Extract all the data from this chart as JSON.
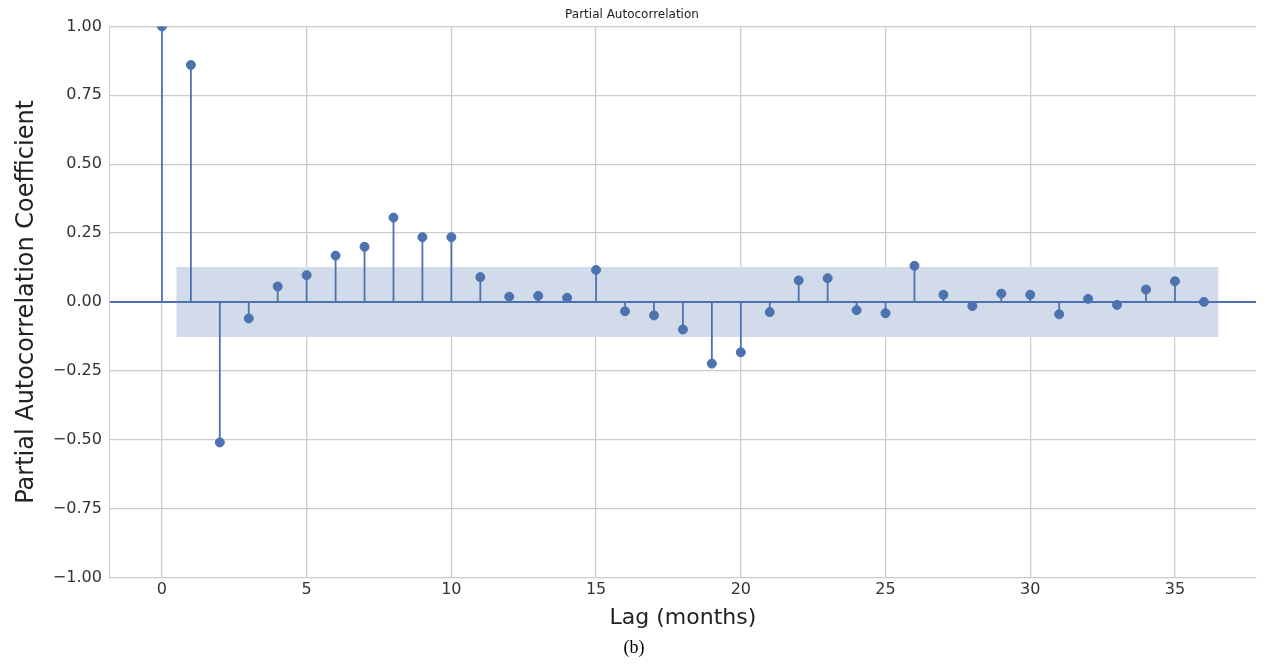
{
  "chart_data": {
    "type": "lollipop",
    "title": "Partial Autocorrelation",
    "xlabel": "Lag (months)",
    "ylabel": "Partial Autocorrelation Coefficient",
    "x": [
      0,
      1,
      2,
      3,
      4,
      5,
      6,
      7,
      8,
      9,
      10,
      11,
      12,
      13,
      14,
      15,
      16,
      17,
      18,
      19,
      20,
      21,
      22,
      23,
      24,
      25,
      26,
      27,
      28,
      29,
      30,
      31,
      32,
      33,
      34,
      35,
      36
    ],
    "series": [
      {
        "color": "#4c72b0",
        "values": [
          1.0,
          0.86,
          -0.51,
          -0.06,
          0.056,
          0.097,
          0.168,
          0.2,
          0.306,
          0.235,
          0.235,
          0.09,
          0.019,
          0.022,
          0.015,
          0.116,
          -0.034,
          -0.049,
          -0.1,
          -0.224,
          -0.183,
          -0.037,
          0.078,
          0.086,
          -0.03,
          -0.041,
          0.131,
          0.026,
          -0.015,
          0.03,
          0.026,
          -0.045,
          0.011,
          -0.011,
          0.045,
          0.075,
          0.0
        ]
      }
    ],
    "xlim": [
      -1.8,
      37.8
    ],
    "xticks": [
      0,
      5,
      10,
      15,
      20,
      25,
      30,
      35
    ],
    "ylim": [
      -1.0,
      1.0
    ],
    "yticks": [
      {
        "value": -1.0,
        "label": "−1.00"
      },
      {
        "value": -0.75,
        "label": "−0.75"
      },
      {
        "value": -0.5,
        "label": "−0.50"
      },
      {
        "value": -0.25,
        "label": "−0.25"
      },
      {
        "value": 0,
        "label": "0.00"
      },
      {
        "value": 0.25,
        "label": "0.25"
      },
      {
        "value": 0.5,
        "label": "0.50"
      },
      {
        "value": 0.75,
        "label": "0.75"
      },
      {
        "value": 1.0,
        "label": "1.00"
      }
    ],
    "bands": [
      {
        "axis": "y",
        "from": -0.127,
        "to": 0.127,
        "color": "#d2dbea"
      }
    ],
    "ref_lines": [
      {
        "axis": "y",
        "value": 0,
        "color": "#4c72b0"
      }
    ],
    "grid": true,
    "marker": "circle",
    "legend": false,
    "annotations": [
      "(b)"
    ]
  }
}
